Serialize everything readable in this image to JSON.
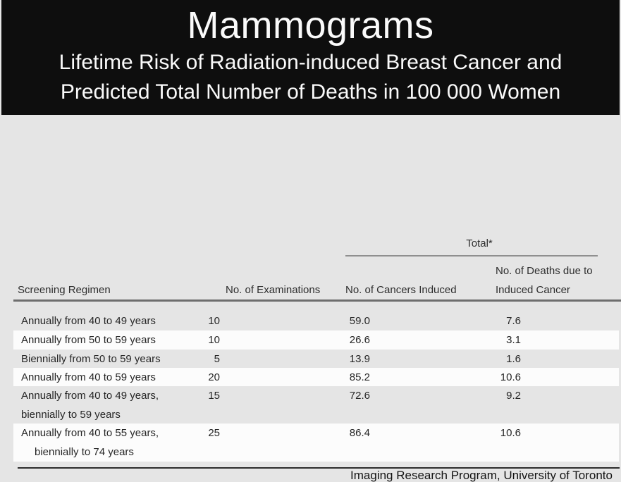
{
  "header": {
    "title": "Mammograms",
    "subtitle_line1": "Lifetime Risk of Radiation-induced Breast Cancer and",
    "subtitle_line2": "Predicted Total Number of Deaths in 100 000 Women"
  },
  "table": {
    "total_header": "Total*",
    "columns": {
      "regimen": "Screening Regimen",
      "examinations": "No. of Examinations",
      "cancers": "No. of Cancers Induced",
      "deaths_line1": "No. of Deaths due to",
      "deaths_line2": "Induced Cancer"
    },
    "rows": [
      {
        "regimen_lines": [
          "Annually from 40 to 49 years"
        ],
        "examinations": "10",
        "cancers": "59.0",
        "deaths": "7.6",
        "shaded": true,
        "indent_second_line": false
      },
      {
        "regimen_lines": [
          "Annually from 50 to 59 years"
        ],
        "examinations": "10",
        "cancers": "26.6",
        "deaths": "3.1",
        "shaded": false,
        "indent_second_line": false
      },
      {
        "regimen_lines": [
          "Biennially from 50 to 59 years"
        ],
        "examinations": "5",
        "cancers": "13.9",
        "deaths": "1.6",
        "shaded": true,
        "indent_second_line": false
      },
      {
        "regimen_lines": [
          "Annually from 40 to 59 years"
        ],
        "examinations": "20",
        "cancers": "85.2",
        "deaths": "10.6",
        "shaded": false,
        "indent_second_line": false
      },
      {
        "regimen_lines": [
          "Annually from 40 to 49 years,",
          "biennially to 59 years"
        ],
        "examinations": "15",
        "cancers": "72.6",
        "deaths": "9.2",
        "shaded": true,
        "indent_second_line": false
      },
      {
        "regimen_lines": [
          "Annually from 40 to 55 years,",
          "biennially to 74 years"
        ],
        "examinations": "25",
        "cancers": "86.4",
        "deaths": "10.6",
        "shaded": false,
        "indent_second_line": true
      }
    ]
  },
  "footer": {
    "credit": "Imaging Research Program, University of Toronto"
  },
  "colors": {
    "header_bg": "#0e0e0e",
    "title_text": "#fafafa",
    "page_bg": "#e5e5e5",
    "row_white": "#fcfcfc",
    "body_text": "#262626",
    "total_rule": "#8f8f8f",
    "header_rule": "#6e6e6e",
    "bottom_rule": "#2b2b2b"
  }
}
